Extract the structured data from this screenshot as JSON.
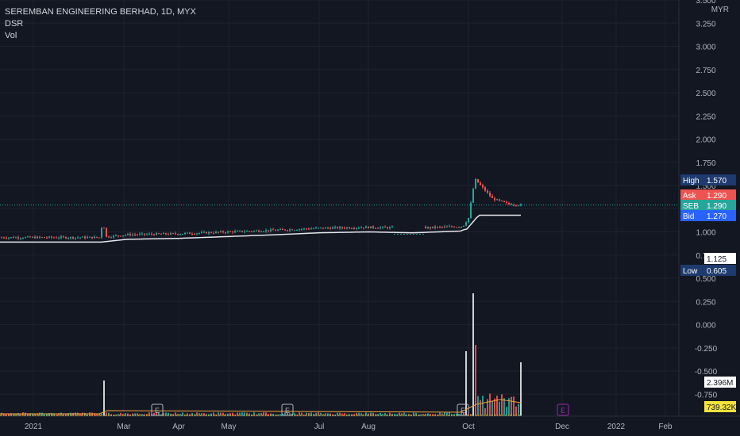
{
  "legend": {
    "title": "SEREMBAN ENGINEERING BERHAD, 1D, MYX",
    "indicator": "DSR",
    "volume": "Vol"
  },
  "axis": {
    "currency": "MYR",
    "price_ticks": [
      "3.500",
      "3.250",
      "3.000",
      "2.750",
      "2.500",
      "2.250",
      "2.000",
      "1.750",
      "1.500",
      "1.250",
      "1.000",
      "0.750",
      "0.500",
      "0.250",
      "0.000",
      "-0.250",
      "-0.500",
      "-0.750"
    ],
    "time_ticks": [
      "2021",
      "Mar",
      "Apr",
      "May",
      "Jul",
      "Aug",
      "Oct",
      "Dec",
      "2022",
      "Feb"
    ]
  },
  "price_labels": {
    "high": {
      "label": "High",
      "value": "1.570"
    },
    "ask": {
      "label": "Ask",
      "value": "1.290"
    },
    "last": {
      "label": "SEB",
      "value": "1.290"
    },
    "bid": {
      "label": "Bid",
      "value": "1.270"
    },
    "ma": {
      "value": "1.125"
    },
    "low": {
      "label": "Low",
      "value": "0.605"
    },
    "volume": {
      "value": "2.396M"
    },
    "volume_ma": {
      "value": "739.32K"
    }
  },
  "events": [
    "E",
    "E",
    "E",
    "E"
  ],
  "colors": {
    "background": "#131722",
    "up": "#26a69a",
    "down": "#ef5350",
    "ma": "#e5e7ec",
    "ma2": "#f0a33c",
    "high_badge": "#1e3a6e",
    "ask_badge": "#ef5350",
    "last_badge": "#26a69a",
    "bid_badge": "#2962ff",
    "earnings_future": "#9c27b0"
  },
  "chart_data": {
    "type": "line",
    "x": [
      "2021-01-04",
      "2021-02-25",
      "2021-03-15",
      "2021-04-15",
      "2021-05-17",
      "2021-06-15",
      "2021-07-15",
      "2021-08-16",
      "2021-09-15",
      "2021-09-30",
      "2021-10-01",
      "2021-10-05",
      "2021-10-12",
      "2021-10-20",
      "2021-10-29"
    ],
    "series": [
      {
        "values": [
          0.94,
          0.94,
          0.97,
          0.98,
          1.0,
          1.02,
          1.04,
          1.05,
          1.04,
          1.06,
          1.15,
          1.57,
          1.36,
          1.3,
          1.29
        ]
      }
    ],
    "ylim": [
      -0.75,
      3.5
    ],
    "high": 1.57,
    "low": 0.605,
    "last": 1.29
  }
}
